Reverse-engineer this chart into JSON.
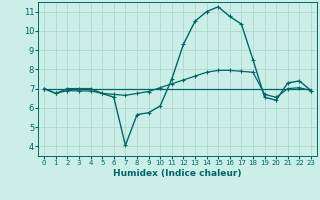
{
  "xlabel": "Humidex (Indice chaleur)",
  "bg_color": "#cceee8",
  "grid_color": "#b0d8d0",
  "line_color": "#006666",
  "xlim": [
    -0.5,
    23.5
  ],
  "ylim": [
    3.5,
    11.5
  ],
  "xticks": [
    0,
    1,
    2,
    3,
    4,
    5,
    6,
    7,
    8,
    9,
    10,
    11,
    12,
    13,
    14,
    15,
    16,
    17,
    18,
    19,
    20,
    21,
    22,
    23
  ],
  "yticks": [
    4,
    5,
    6,
    7,
    8,
    9,
    10,
    11
  ],
  "line1_x": [
    0,
    1,
    2,
    3,
    4,
    5,
    6,
    7,
    8,
    9,
    10,
    11,
    12,
    13,
    14,
    15,
    16,
    17,
    18,
    19,
    20,
    21,
    22,
    23
  ],
  "line1_y": [
    7.0,
    6.75,
    7.0,
    7.0,
    7.0,
    6.75,
    6.55,
    4.05,
    5.65,
    5.75,
    6.1,
    7.5,
    9.3,
    10.5,
    11.0,
    11.25,
    10.75,
    10.35,
    8.5,
    6.55,
    6.4,
    7.3,
    7.4,
    6.9
  ],
  "line2_x": [
    0,
    1,
    2,
    3,
    4,
    5,
    6,
    7,
    8,
    9,
    10,
    11,
    12,
    13,
    14,
    15,
    16,
    17,
    18,
    19,
    20,
    21,
    22,
    23
  ],
  "line2_y": [
    7.0,
    6.75,
    6.9,
    6.88,
    6.88,
    6.75,
    6.7,
    6.65,
    6.75,
    6.85,
    7.05,
    7.25,
    7.45,
    7.65,
    7.85,
    7.95,
    7.95,
    7.9,
    7.85,
    6.7,
    6.55,
    7.0,
    7.05,
    6.9
  ],
  "line3_x": [
    0,
    23
  ],
  "line3_y": [
    7.0,
    7.0
  ],
  "xlabel_fontsize": 6.5,
  "xlabel_fontweight": "bold",
  "tick_fontsize_x": 5.0,
  "tick_fontsize_y": 6.0
}
